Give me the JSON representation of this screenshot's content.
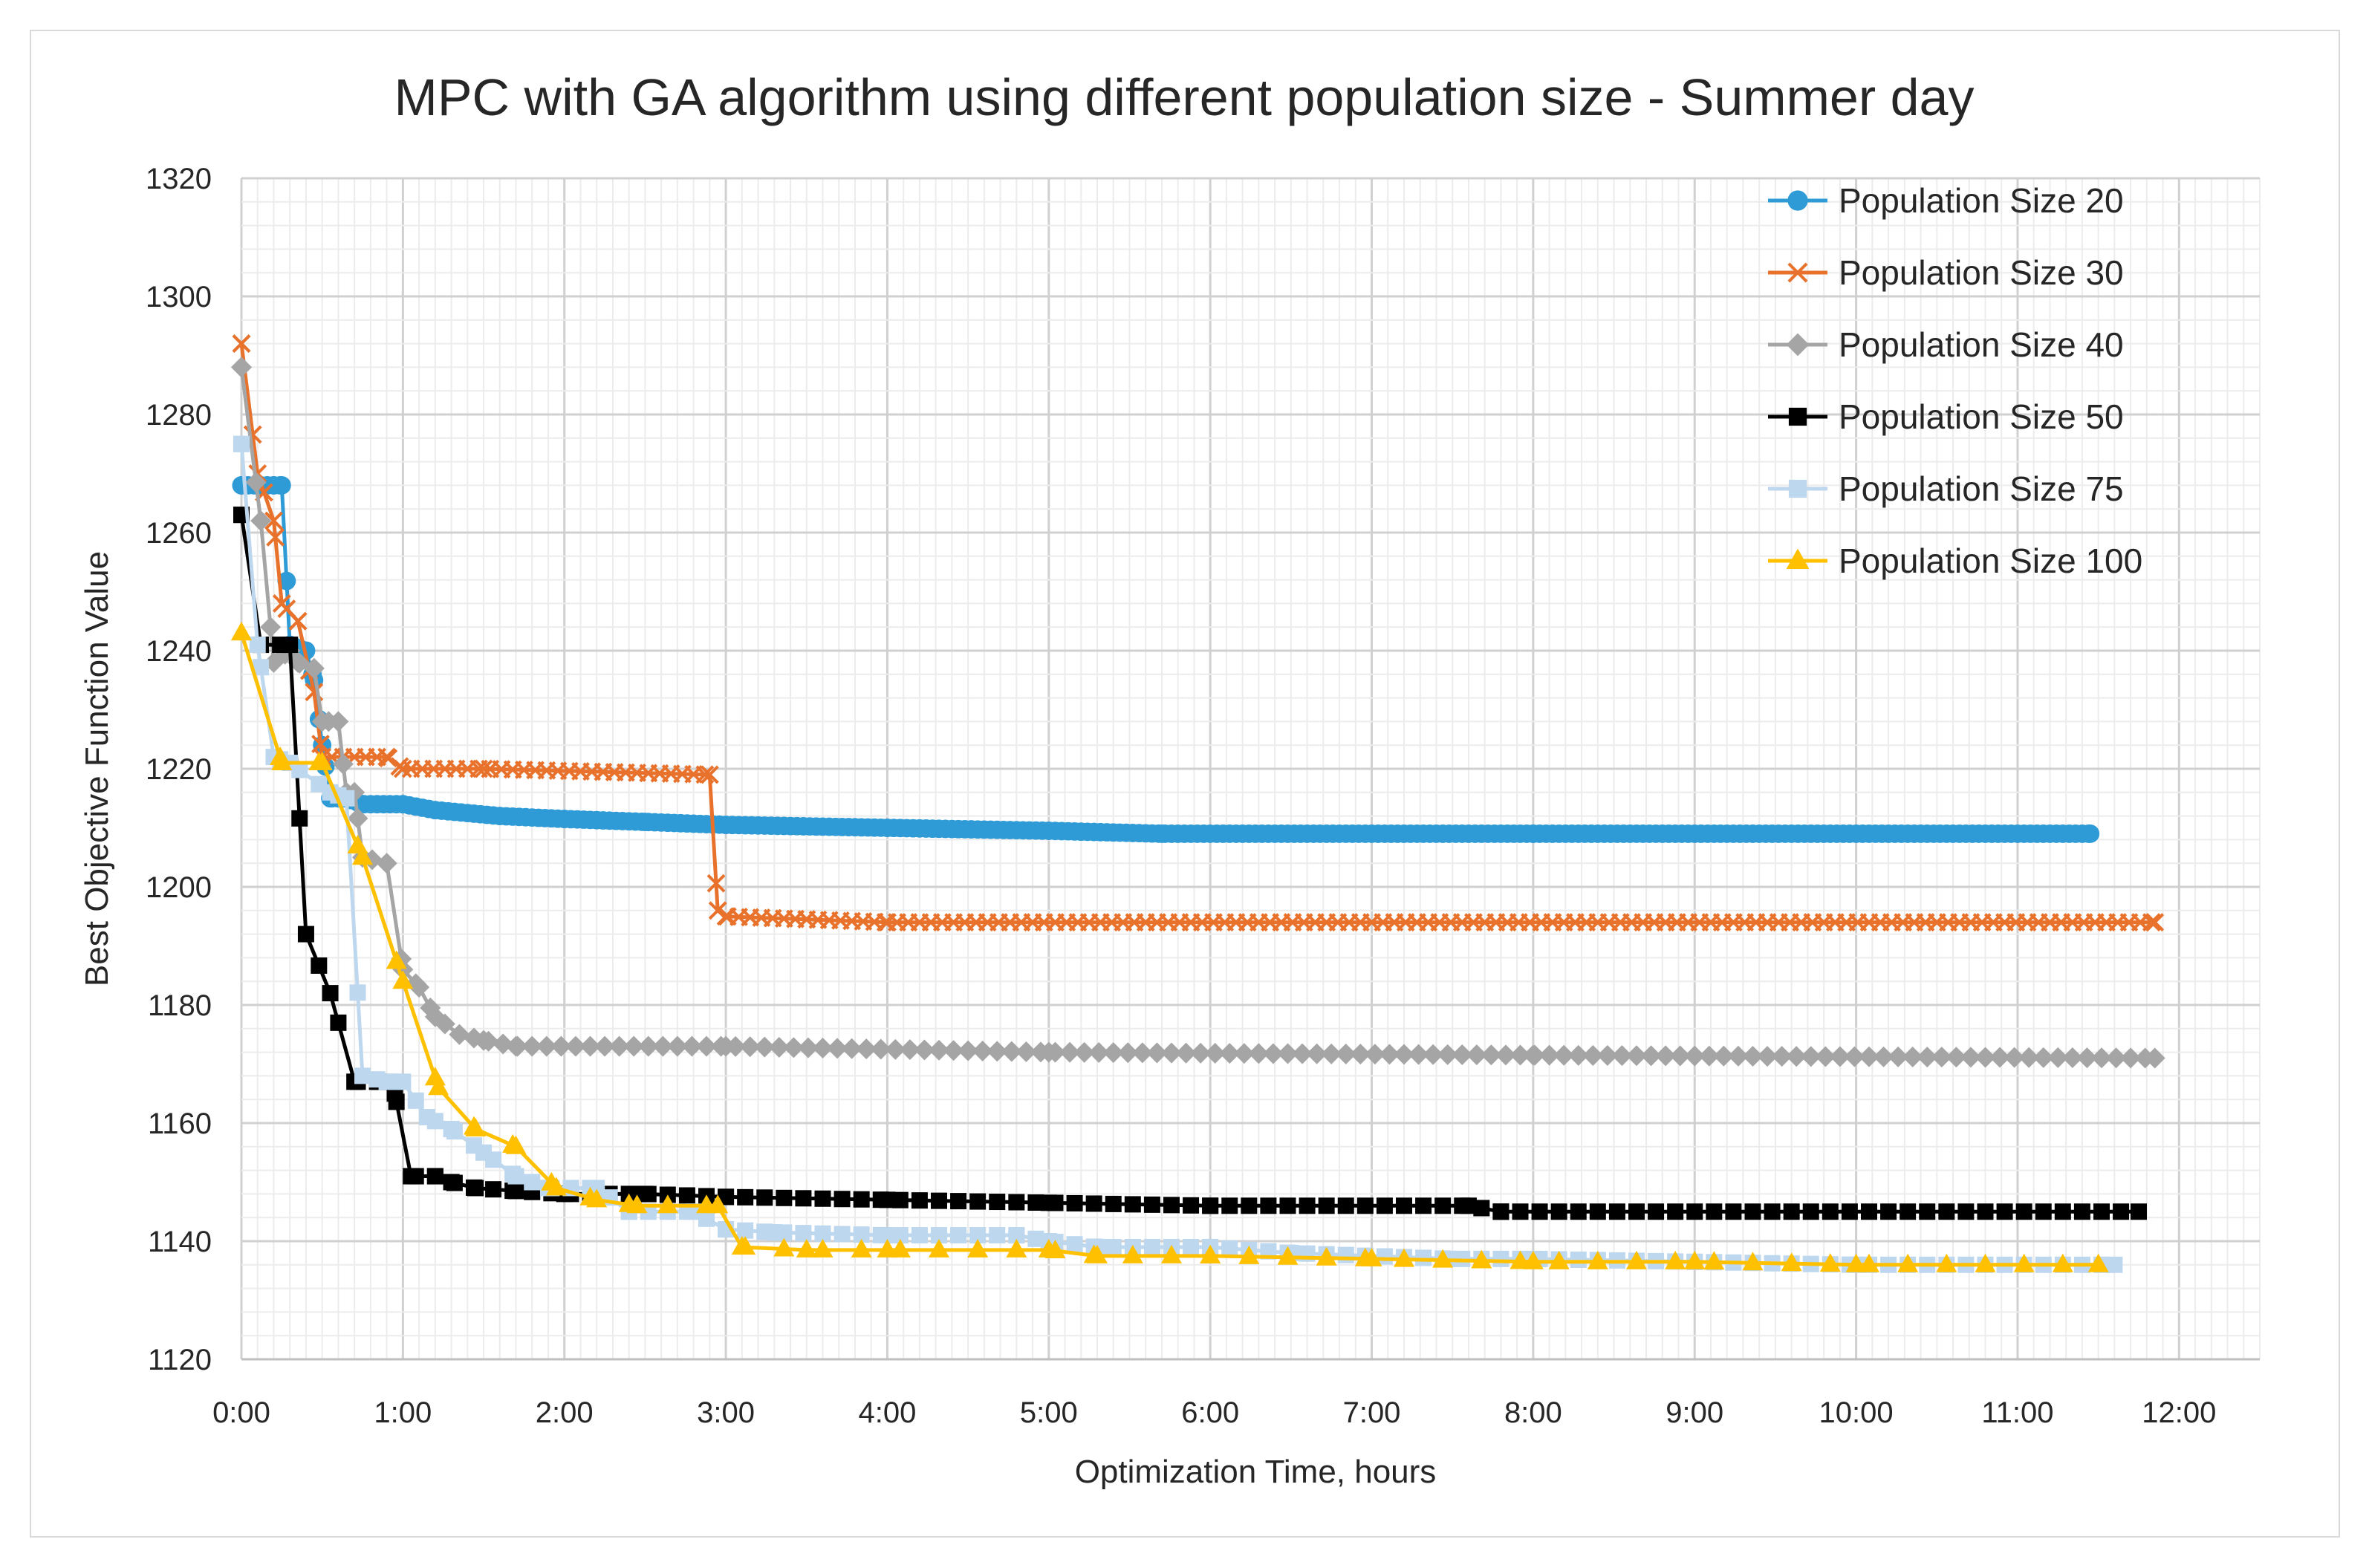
{
  "chart_data": {
    "type": "line",
    "title": "MPC with GA algorithm using different population size - Summer day",
    "xlabel": "Optimization Time, hours",
    "ylabel": "Best Objective Function Value",
    "xlim": [
      0,
      12.5
    ],
    "ylim": [
      1120,
      1320
    ],
    "x_ticks": [
      0,
      1,
      2,
      3,
      4,
      5,
      6,
      7,
      8,
      9,
      10,
      11,
      12
    ],
    "x_tick_labels": [
      "0:00",
      "1:00",
      "2:00",
      "3:00",
      "4:00",
      "5:00",
      "6:00",
      "7:00",
      "8:00",
      "9:00",
      "10:00",
      "11:00",
      "12:00"
    ],
    "y_ticks": [
      1120,
      1140,
      1160,
      1180,
      1200,
      1220,
      1240,
      1260,
      1280,
      1300,
      1320
    ],
    "y_tick_labels": [
      "1120",
      "1140",
      "1160",
      "1180",
      "1200",
      "1220",
      "1240",
      "1260",
      "1280",
      "1300",
      "1320"
    ],
    "grid": true,
    "legend_position": "top-right",
    "series": [
      {
        "name": "Population Size 20",
        "color": "#2e9bd6",
        "marker": "circle",
        "points": [
          [
            0,
            1268
          ],
          [
            0.1,
            1268
          ],
          [
            0.2,
            1268
          ],
          [
            0.25,
            1268
          ],
          [
            0.3,
            1241
          ],
          [
            0.4,
            1240
          ],
          [
            0.45,
            1235
          ],
          [
            0.5,
            1224
          ],
          [
            0.55,
            1215
          ],
          [
            0.65,
            1215
          ],
          [
            0.75,
            1214
          ],
          [
            1.0,
            1214
          ],
          [
            1.2,
            1213
          ],
          [
            1.6,
            1212
          ],
          [
            2.0,
            1211.5
          ],
          [
            2.5,
            1211
          ],
          [
            3.0,
            1210.5
          ],
          [
            4.0,
            1210
          ],
          [
            5.0,
            1209.5
          ],
          [
            5.7,
            1209
          ],
          [
            8.0,
            1209
          ],
          [
            11.45,
            1209
          ]
        ],
        "marker_step": 0.04
      },
      {
        "name": "Population Size 30",
        "color": "#e8722c",
        "marker": "x",
        "points": [
          [
            0,
            1292
          ],
          [
            0.1,
            1270
          ],
          [
            0.2,
            1262
          ],
          [
            0.25,
            1248
          ],
          [
            0.35,
            1245
          ],
          [
            0.45,
            1233
          ],
          [
            0.5,
            1222
          ],
          [
            0.9,
            1222
          ],
          [
            1.0,
            1220
          ],
          [
            1.5,
            1220
          ],
          [
            2.9,
            1219
          ],
          [
            2.95,
            1196
          ],
          [
            3.0,
            1195
          ],
          [
            3.5,
            1194.5
          ],
          [
            4.0,
            1194
          ],
          [
            11.85,
            1194
          ]
        ],
        "marker_step": 0.07
      },
      {
        "name": "Population Size 40",
        "color": "#a5a5a5",
        "marker": "diamond",
        "points": [
          [
            0,
            1288
          ],
          [
            0.12,
            1262
          ],
          [
            0.2,
            1238
          ],
          [
            0.3,
            1240
          ],
          [
            0.35,
            1238
          ],
          [
            0.45,
            1237
          ],
          [
            0.5,
            1228
          ],
          [
            0.6,
            1228
          ],
          [
            0.65,
            1216
          ],
          [
            0.7,
            1216
          ],
          [
            0.75,
            1205
          ],
          [
            0.9,
            1204
          ],
          [
            1.0,
            1186
          ],
          [
            1.1,
            1183
          ],
          [
            1.2,
            1178
          ],
          [
            1.35,
            1175
          ],
          [
            1.5,
            1174
          ],
          [
            1.7,
            1173
          ],
          [
            3.0,
            1173
          ],
          [
            5.0,
            1172
          ],
          [
            8.0,
            1171.5
          ],
          [
            11.85,
            1171
          ]
        ],
        "marker_step": 0.09
      },
      {
        "name": "Population Size 50",
        "color": "#000000",
        "marker": "square",
        "points": [
          [
            0,
            1263
          ],
          [
            0.12,
            1241
          ],
          [
            0.3,
            1241
          ],
          [
            0.4,
            1192
          ],
          [
            0.55,
            1182
          ],
          [
            0.7,
            1167
          ],
          [
            0.85,
            1167
          ],
          [
            0.95,
            1165
          ],
          [
            1.05,
            1151
          ],
          [
            1.2,
            1151
          ],
          [
            1.3,
            1150
          ],
          [
            1.45,
            1149
          ],
          [
            1.7,
            1148.5
          ],
          [
            2.0,
            1148
          ],
          [
            2.5,
            1148
          ],
          [
            3.0,
            1147.5
          ],
          [
            4.0,
            1147
          ],
          [
            5.0,
            1146.5
          ],
          [
            6.0,
            1146
          ],
          [
            7.6,
            1146
          ],
          [
            7.8,
            1145
          ],
          [
            11.75,
            1145
          ]
        ],
        "marker_step": 0.12
      },
      {
        "name": "Population Size 75",
        "color": "#bdd7ee",
        "marker": "square",
        "points": [
          [
            0,
            1275
          ],
          [
            0.1,
            1241
          ],
          [
            0.2,
            1222
          ],
          [
            0.3,
            1221
          ],
          [
            0.55,
            1216
          ],
          [
            0.65,
            1215
          ],
          [
            0.75,
            1168
          ],
          [
            0.9,
            1167
          ],
          [
            1.0,
            1167
          ],
          [
            1.15,
            1161
          ],
          [
            1.3,
            1159
          ],
          [
            1.5,
            1155
          ],
          [
            1.7,
            1151
          ],
          [
            1.9,
            1149
          ],
          [
            2.2,
            1149
          ],
          [
            2.4,
            1145
          ],
          [
            2.8,
            1145
          ],
          [
            3.0,
            1142
          ],
          [
            3.3,
            1141.5
          ],
          [
            4.0,
            1141
          ],
          [
            4.8,
            1141
          ],
          [
            5.0,
            1140
          ],
          [
            5.3,
            1139
          ],
          [
            6.0,
            1139
          ],
          [
            6.5,
            1138
          ],
          [
            7.5,
            1137
          ],
          [
            8.0,
            1137
          ],
          [
            9.0,
            1136.5
          ],
          [
            10.0,
            1136
          ],
          [
            11.6,
            1136
          ]
        ],
        "marker_step": 0.12
      },
      {
        "name": "Population Size 100",
        "color": "#ffc000",
        "marker": "triangle",
        "points": [
          [
            0,
            1243
          ],
          [
            0.25,
            1221
          ],
          [
            0.5,
            1221
          ],
          [
            0.75,
            1205
          ],
          [
            1.0,
            1184
          ],
          [
            1.22,
            1166
          ],
          [
            1.45,
            1159
          ],
          [
            1.7,
            1156
          ],
          [
            1.95,
            1149
          ],
          [
            2.2,
            1147
          ],
          [
            2.45,
            1146
          ],
          [
            2.95,
            1146
          ],
          [
            3.1,
            1139
          ],
          [
            3.5,
            1138.5
          ],
          [
            4.0,
            1138.5
          ],
          [
            5.0,
            1138.5
          ],
          [
            5.3,
            1137.5
          ],
          [
            6.0,
            1137.5
          ],
          [
            7.0,
            1137
          ],
          [
            8.0,
            1136.5
          ],
          [
            9.0,
            1136.5
          ],
          [
            10.0,
            1136
          ],
          [
            11.5,
            1136
          ]
        ],
        "marker_step": 0.24
      }
    ]
  }
}
